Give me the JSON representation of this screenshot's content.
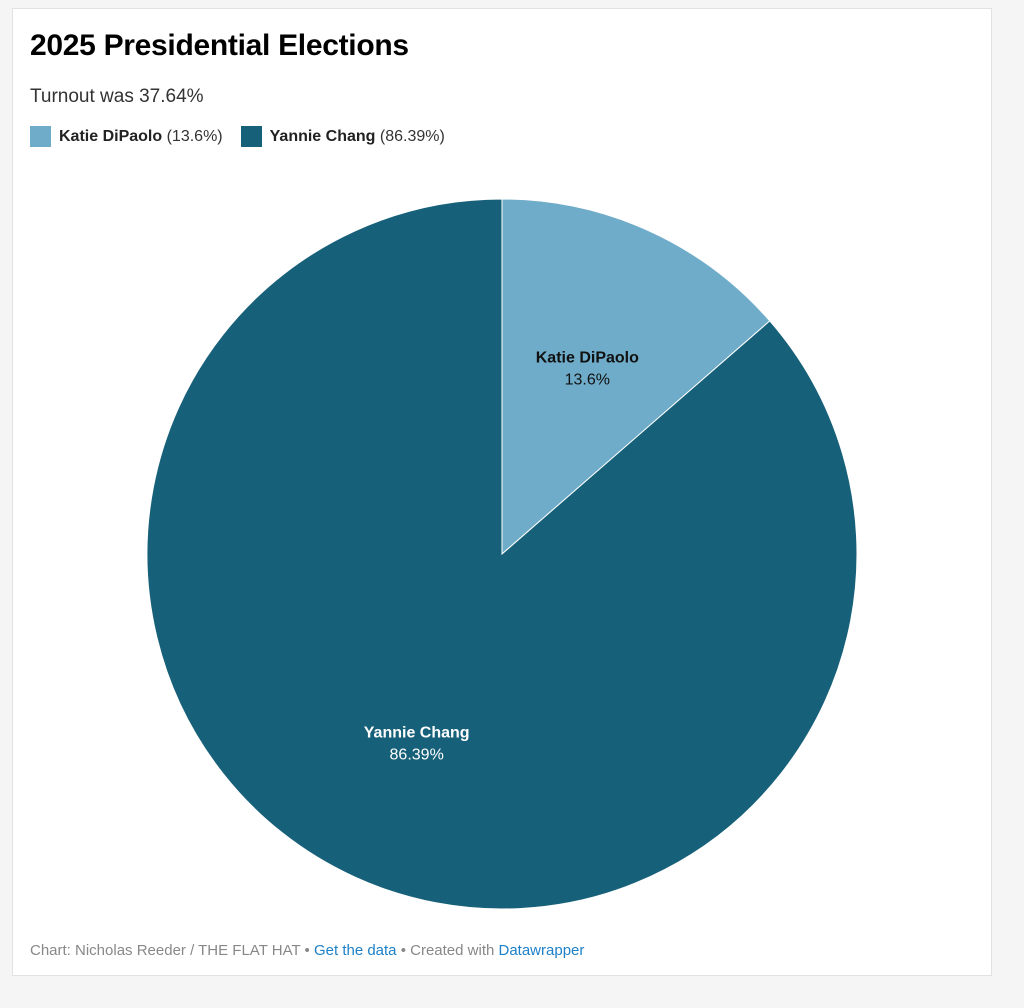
{
  "header": {
    "title": "2025 Presidential Elections",
    "subtitle": "Turnout was 37.64%"
  },
  "chart_data": {
    "type": "pie",
    "title": "2025 Presidential Elections",
    "subtitle": "Turnout was 37.64%",
    "legend_placement": "top-left",
    "slices": [
      {
        "name": "Katie DiPaolo",
        "value": 13.6,
        "label": "13.6%",
        "legend_value": "(13.6%)",
        "color": "#6eacc9",
        "label_color": "#111111"
      },
      {
        "name": "Yannie Chang",
        "value": 86.39,
        "label": "86.39%",
        "legend_value": "(86.39%)",
        "color": "#176079",
        "label_color": "#ffffff"
      }
    ]
  },
  "footer": {
    "prefix": "Chart: Nicholas Reeder / THE FLAT HAT",
    "sep1": " • ",
    "get_data": "Get the data",
    "sep2": " • ",
    "created_with": "Created with ",
    "datawrapper": "Datawrapper"
  }
}
